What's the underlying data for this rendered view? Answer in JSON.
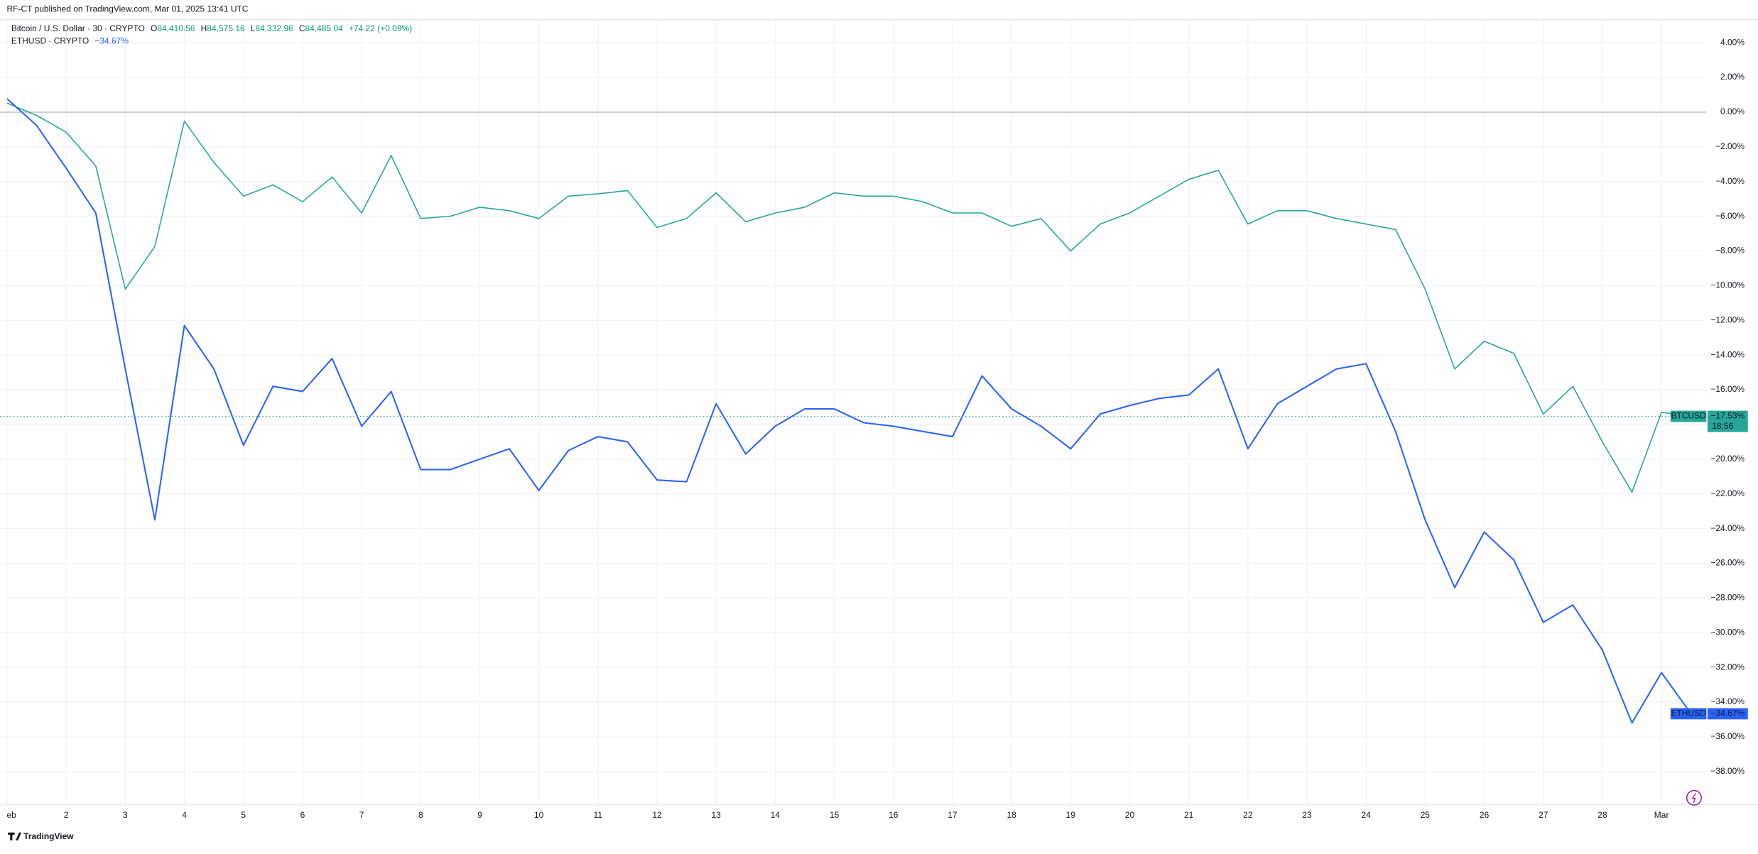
{
  "header": {
    "publisher": "RF-CT published on TradingView.com, Mar 01, 2025 13:41 UTC"
  },
  "legend": {
    "symbol": "Bitcoin / U.S. Dollar · 30 · CRYPTO",
    "ohlc": [
      {
        "key": "O",
        "value": "84,410.56"
      },
      {
        "key": "H",
        "value": "84,575.16"
      },
      {
        "key": "L",
        "value": "84,332.96"
      },
      {
        "key": "C",
        "value": "84,485.04"
      }
    ],
    "change": "+74.22 (+0.09%)",
    "compare_symbol": "ETHUSD · CRYPTO"
  },
  "chart_data": {
    "type": "line",
    "x": [
      1,
      1.5,
      2,
      2.5,
      3,
      3.5,
      4,
      4.5,
      5,
      5.5,
      6,
      6.5,
      7,
      7.5,
      8,
      8.5,
      9,
      9.5,
      10,
      10.5,
      11,
      11.5,
      12,
      12.5,
      13,
      13.5,
      14,
      14.5,
      15,
      15.5,
      16,
      16.5,
      17,
      17.5,
      18,
      18.5,
      19,
      19.5,
      20,
      20.5,
      21,
      21.5,
      22,
      22.5,
      23,
      23.5,
      24,
      24.5,
      25,
      25.5,
      26,
      26.5,
      27,
      27.5,
      28,
      28.5,
      29,
      29.5
    ],
    "xlim": [
      0.88,
      29.76
    ],
    "xticks": [
      {
        "value": 1,
        "label": "eb"
      },
      2,
      3,
      4,
      5,
      6,
      7,
      8,
      9,
      10,
      11,
      12,
      13,
      14,
      15,
      16,
      17,
      18,
      19,
      20,
      21,
      22,
      23,
      24,
      25,
      26,
      27,
      28,
      {
        "value": 29,
        "label": "Mar"
      }
    ],
    "ylim": [
      -39.9,
      5.3
    ],
    "yticks": [
      {
        "value": 4,
        "label": "4.00%"
      },
      {
        "value": 2,
        "label": "2.00%"
      },
      {
        "value": 0,
        "label": "0.00%"
      },
      {
        "value": -2,
        "label": "−2.00%"
      },
      {
        "value": -4,
        "label": "−4.00%"
      },
      {
        "value": -6,
        "label": "−6.00%"
      },
      {
        "value": -8,
        "label": "−8.00%"
      },
      {
        "value": -10,
        "label": "−10.00%"
      },
      {
        "value": -12,
        "label": "−12.00%"
      },
      {
        "value": -14,
        "label": "−14.00%"
      },
      {
        "value": -16,
        "label": "−16.00%"
      },
      {
        "value": -18,
        "label": "−18.00%"
      },
      {
        "value": -20,
        "label": "−20.00%"
      },
      {
        "value": -22,
        "label": "−22.00%"
      },
      {
        "value": -24,
        "label": "−24.00%"
      },
      {
        "value": -26,
        "label": "−26.00%"
      },
      {
        "value": -28,
        "label": "−28.00%"
      },
      {
        "value": -30,
        "label": "−30.00%"
      },
      {
        "value": -32,
        "label": "−32.00%"
      },
      {
        "value": -34,
        "label": "−34.00%"
      },
      {
        "value": -36,
        "label": "−36.00%"
      },
      {
        "value": -38,
        "label": "−38.00%"
      }
    ],
    "grid": true,
    "series": [
      {
        "name": "BTCUSD",
        "color": "#26a69a",
        "countdown": "18:56",
        "values": [
          0.52,
          -0.19,
          -1.16,
          -3.1,
          -10.2,
          -7.74,
          -0.52,
          -2.9,
          -4.84,
          -4.19,
          -5.16,
          -3.74,
          -5.81,
          -2.5,
          -6.13,
          -6.0,
          -5.48,
          -5.68,
          -6.13,
          -4.84,
          -4.71,
          -4.52,
          -6.65,
          -6.13,
          -4.65,
          -6.32,
          -5.81,
          -5.48,
          -4.65,
          -4.84,
          -4.84,
          -5.16,
          -5.81,
          -5.81,
          -6.58,
          -6.13,
          -8.0,
          -6.45,
          -5.81,
          -4.84,
          -3.87,
          -3.35,
          -6.45,
          -5.68,
          -5.68,
          -6.13,
          -6.45,
          -6.77,
          -10.2,
          -14.8,
          -13.2,
          -13.9,
          -17.4,
          -15.8,
          -19.0,
          -21.9,
          -17.3,
          -17.53
        ],
        "value_labels": [
          null,
          null,
          null,
          null,
          null,
          null,
          null,
          null,
          null,
          null,
          null,
          null,
          null,
          null,
          null,
          null,
          null,
          null,
          null,
          null,
          null,
          null,
          null,
          null,
          null,
          null,
          null,
          null,
          null,
          null,
          null,
          null,
          null,
          null,
          null,
          null,
          null,
          null,
          null,
          null,
          null,
          null,
          null,
          null,
          null,
          null,
          null,
          null,
          null,
          null,
          null,
          null,
          null,
          null,
          null,
          null,
          null,
          "−17.53%"
        ]
      },
      {
        "name": "ETHUSD",
        "color": "#2962ff",
        "values": [
          0.77,
          -0.77,
          -3.23,
          -5.81,
          -14.8,
          -23.5,
          -12.3,
          -14.8,
          -19.2,
          -15.8,
          -16.1,
          -14.2,
          -18.1,
          -16.1,
          -20.6,
          -20.6,
          -20.0,
          -19.4,
          -21.8,
          -19.5,
          -18.7,
          -19.0,
          -21.2,
          -21.3,
          -16.8,
          -19.7,
          -18.1,
          -17.1,
          -17.1,
          -17.9,
          -18.1,
          -18.4,
          -18.7,
          -15.2,
          -17.1,
          -18.1,
          -19.4,
          -17.4,
          -16.9,
          -16.5,
          -16.3,
          -14.8,
          -19.4,
          -16.8,
          -15.8,
          -14.8,
          -14.5,
          -18.4,
          -23.5,
          -27.4,
          -24.2,
          -25.8,
          -29.4,
          -28.4,
          -31.0,
          -35.2,
          -32.3,
          -34.67
        ],
        "value_labels": [
          null,
          null,
          null,
          null,
          null,
          null,
          null,
          null,
          null,
          null,
          null,
          null,
          null,
          null,
          null,
          null,
          null,
          null,
          null,
          null,
          null,
          null,
          null,
          null,
          null,
          null,
          null,
          null,
          null,
          null,
          null,
          null,
          null,
          null,
          null,
          null,
          null,
          null,
          null,
          null,
          null,
          null,
          null,
          null,
          null,
          null,
          null,
          null,
          null,
          null,
          null,
          null,
          null,
          null,
          null,
          null,
          null,
          "−34.67%"
        ]
      }
    ]
  },
  "footer": {
    "brand": "TradingView"
  }
}
